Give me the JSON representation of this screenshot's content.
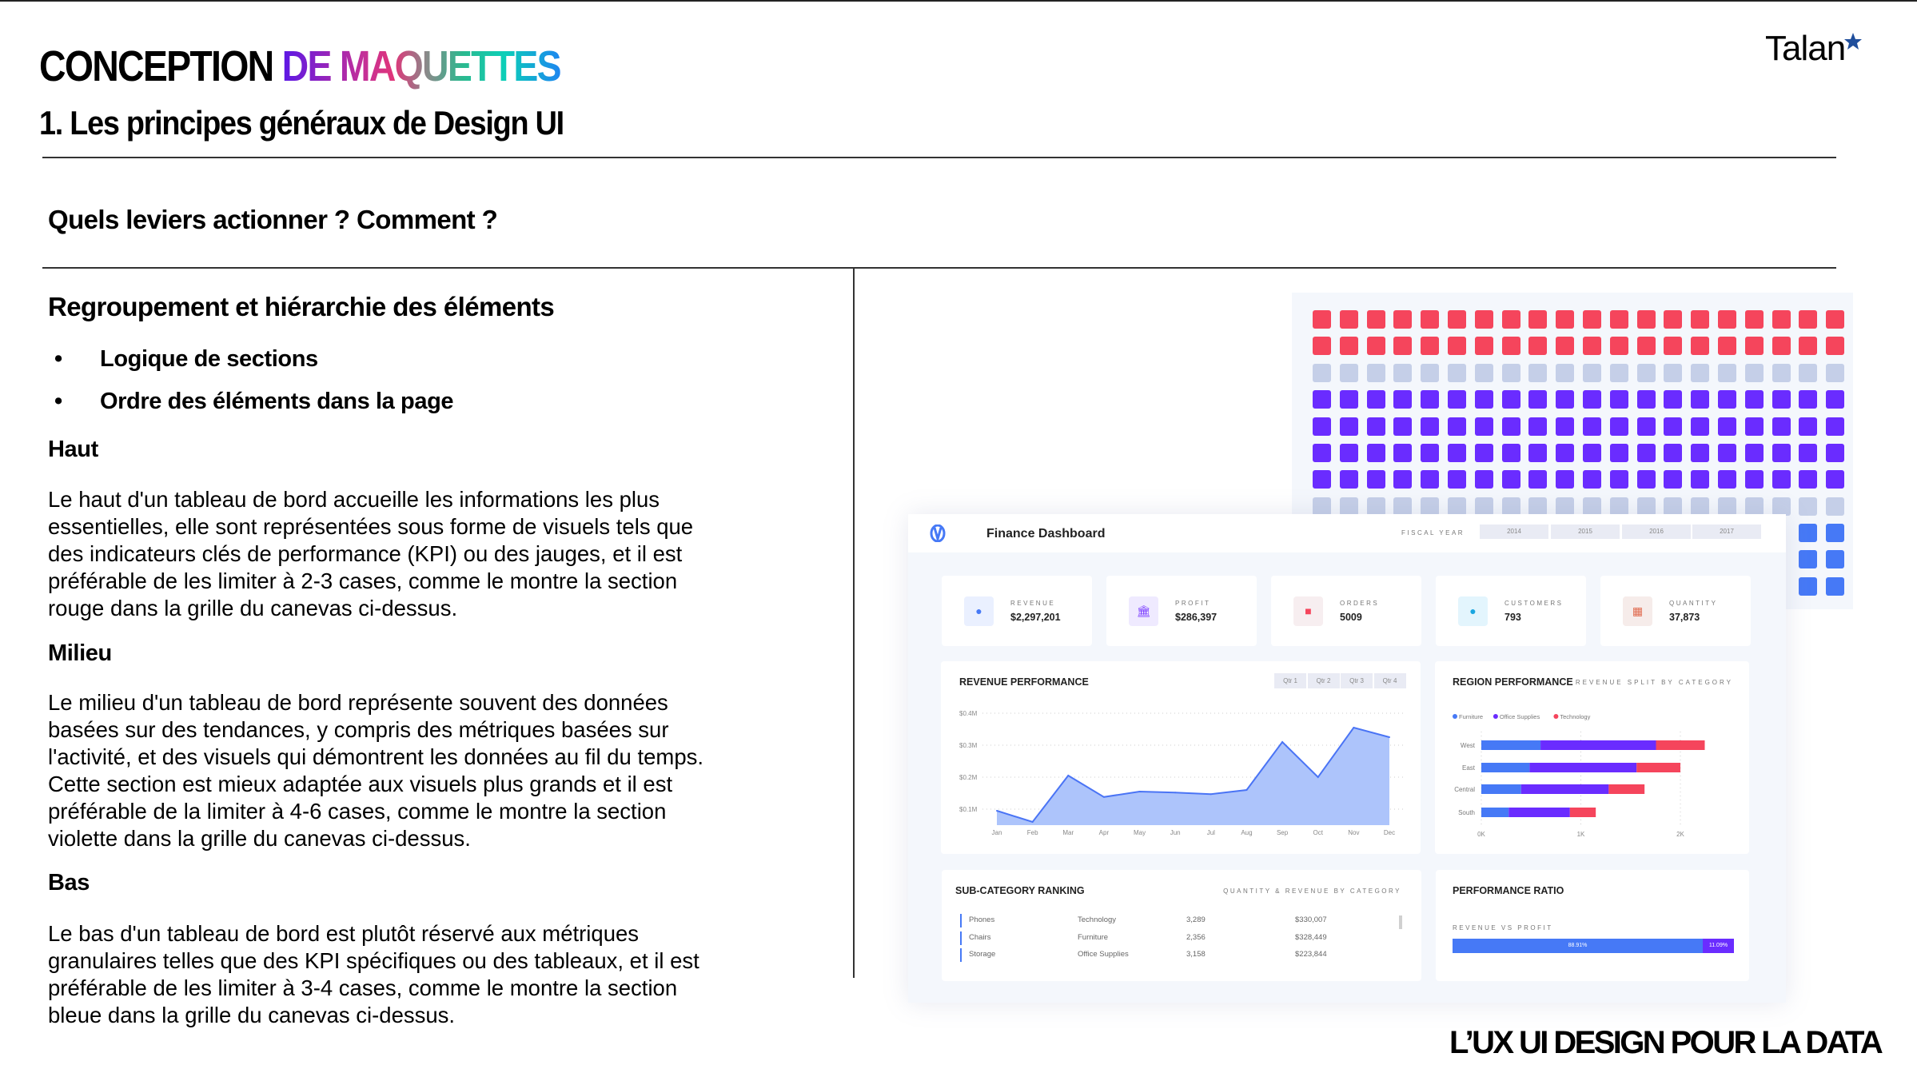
{
  "header": {
    "title_black": "CONCEPTION",
    "title_gradient": "DE MAQUETTES",
    "subtitle": "1. Les principes généraux de Design UI",
    "logo_text": "Talan",
    "logo_star_color": "#1f4e9c"
  },
  "question": "Quels leviers actionner ? Comment ?",
  "section": {
    "heading": "Regroupement et hiérarchie des éléments",
    "bullets": [
      "Logique de sections",
      "Ordre des éléments dans la page"
    ],
    "blocks": [
      {
        "title": "Haut",
        "lines": [
          "Le haut d'un tableau de bord accueille les informations les plus",
          "essentielles, elle sont représentées sous forme de visuels tels que",
          "des indicateurs clés de performance (KPI) ou des jauges, et il est",
          "préférable de les limiter à 2-3 cases, comme le montre la section",
          "rouge dans la grille du canevas ci-dessus."
        ]
      },
      {
        "title": "Milieu",
        "lines": [
          "Le milieu d'un tableau de bord représente souvent des données",
          "basées sur des tendances, y compris des métriques basées sur",
          "l'activité, et des visuels qui démontrent les données au fil du temps.",
          "Cette section est mieux adaptée aux visuels plus grands et il est",
          "préférable de la limiter à 4-6 cases, comme le montre la section",
          "violette dans la grille du canevas ci-dessus."
        ]
      },
      {
        "title": "Bas",
        "lines": [
          "Le bas d'un tableau de bord est plutôt réservé aux métriques",
          "granulaires telles que des KPI spécifiques ou des tableaux, et il est",
          "préférable de les limiter à 3-4 cases, comme le montre la section",
          "bleue dans la grille du canevas ci-dessus."
        ]
      }
    ]
  },
  "footer": "L’UX UI DESIGN POUR LA DATA",
  "canvas_grid": {
    "columns": 20,
    "rows": [
      "#f5455c",
      "#f5455c",
      "#c5cfe8",
      "#6a2cff",
      "#6a2cff",
      "#6a2cff",
      "#6a2cff",
      "#c5cfe8"
    ],
    "blue_rows": 3,
    "blue_color": "#4679f6"
  },
  "dashboard": {
    "title": "Finance Dashboard",
    "fiscal_label": "FISCAL YEAR",
    "years": [
      "2014",
      "2015",
      "2016",
      "2017"
    ],
    "kpis": [
      {
        "label": "REVENUE",
        "value": "$2,297,201",
        "icon": "coin-icon",
        "color": "#4679f6",
        "bg": "#eaf0ff"
      },
      {
        "label": "PROFIT",
        "value": "$286,397",
        "icon": "bank-icon",
        "color": "#7a3cff",
        "bg": "#efeaff"
      },
      {
        "label": "ORDERS",
        "value": "5009",
        "icon": "truck-icon",
        "color": "#f5455c",
        "bg": "#f7eef0"
      },
      {
        "label": "CUSTOMERS",
        "value": "793",
        "icon": "customer-icon",
        "color": "#1aa6e0",
        "bg": "#e3f5fd"
      },
      {
        "label": "QUANTITY",
        "value": "37,873",
        "icon": "calculator-icon",
        "color": "#e06a4e",
        "bg": "#f6ecea"
      }
    ],
    "revenue": {
      "title": "REVENUE PERFORMANCE",
      "quarters": [
        "Qtr 1",
        "Qtr 2",
        "Qtr 3",
        "Qtr 4"
      ],
      "chart_data": {
        "type": "area",
        "categories": [
          "Jan",
          "Feb",
          "Mar",
          "Apr",
          "May",
          "Jun",
          "Jul",
          "Aug",
          "Sep",
          "Oct",
          "Nov",
          "Dec"
        ],
        "values": [
          0.095,
          0.06,
          0.205,
          0.138,
          0.155,
          0.152,
          0.147,
          0.16,
          0.31,
          0.2,
          0.355,
          0.325
        ],
        "yticks": [
          "$0.1M",
          "$0.2M",
          "$0.3M",
          "$0.4M"
        ],
        "ytick_values": [
          0.1,
          0.2,
          0.3,
          0.4
        ],
        "ylim": [
          0.05,
          0.4
        ],
        "grid": true,
        "fill": "#adc4fb",
        "line": "#4a74f5"
      }
    },
    "region": {
      "title": "REGION PERFORMANCE",
      "subtitle": "REVENUE SPLIT BY CATEGORY",
      "chart_data": {
        "type": "bar",
        "orientation": "horizontal-stacked",
        "categories": [
          "West",
          "East",
          "Central",
          "South"
        ],
        "series": [
          {
            "name": "Furniture",
            "color": "#4679f6",
            "values": [
              0.595,
              0.485,
              0.4,
              0.275
            ]
          },
          {
            "name": "Office Supplies",
            "color": "#6a2cff",
            "values": [
              1.16,
              1.075,
              0.88,
              0.615
            ]
          },
          {
            "name": "Technology",
            "color": "#f5455c",
            "values": [
              0.49,
              0.44,
              0.36,
              0.26
            ]
          }
        ],
        "xticks": [
          "0K",
          "1K",
          "2K"
        ],
        "xtick_values": [
          0,
          1,
          2
        ],
        "legend": "top-left"
      }
    },
    "subcategory": {
      "title": "SUB-CATEGORY RANKING",
      "subtitle": "QUANTITY & REVENUE BY CATEGORY",
      "rows": [
        [
          "Phones",
          "Technology",
          "3,289",
          "$330,007"
        ],
        [
          "Chairs",
          "Furniture",
          "2,356",
          "$328,449"
        ],
        [
          "Storage",
          "Office Supplies",
          "3,158",
          "$223,844"
        ]
      ]
    },
    "ratio": {
      "title": "PERFORMANCE RATIO",
      "subtitle": "REVENUE VS PROFIT",
      "revenue_pct": 88.91,
      "profit_pct": 11.09,
      "revenue_label": "88.91%",
      "profit_label": "11.09%"
    }
  }
}
